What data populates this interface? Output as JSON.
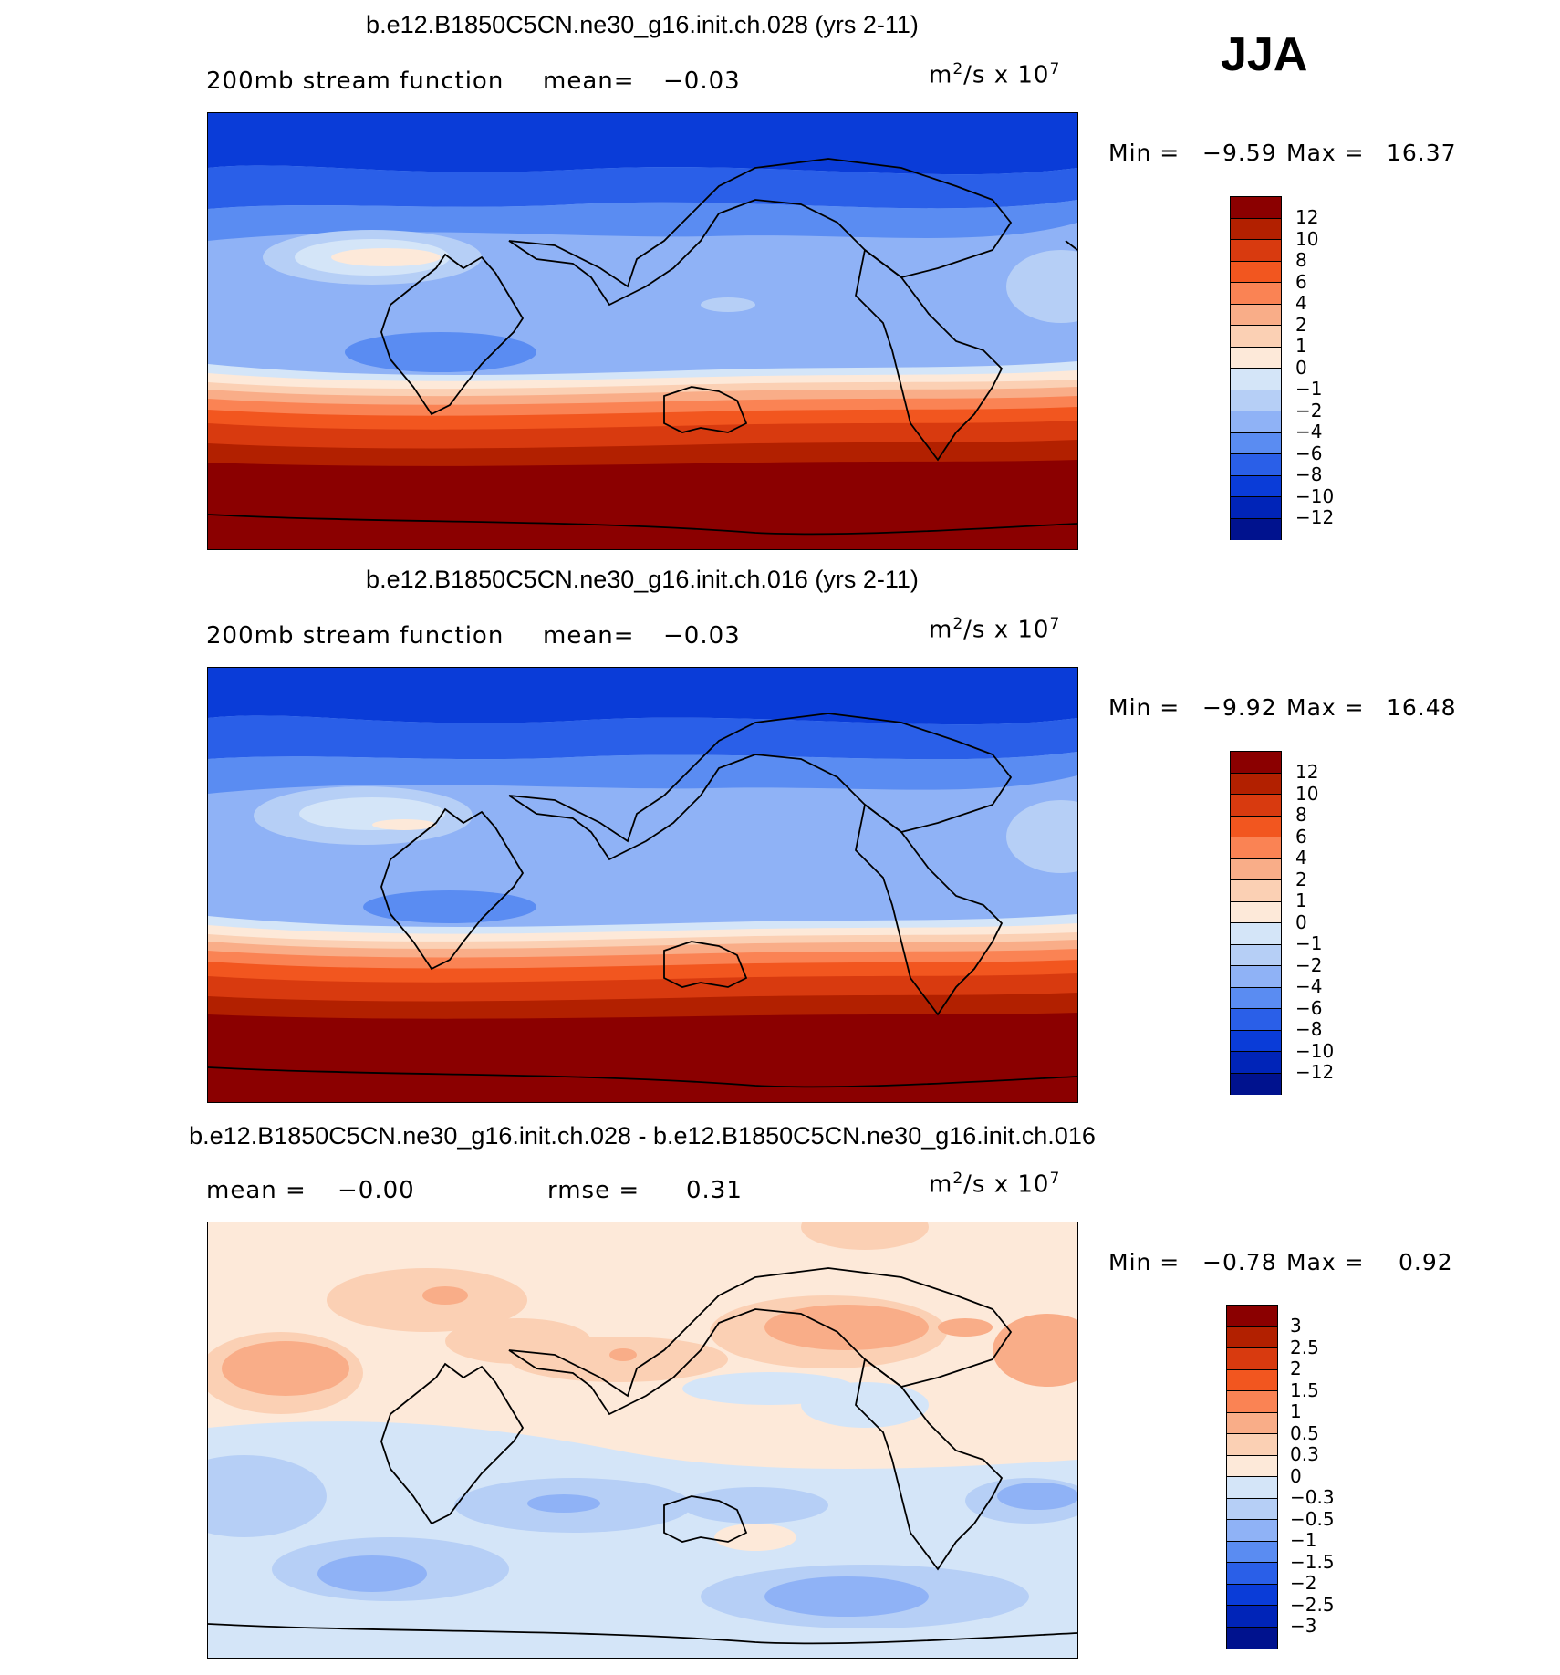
{
  "season": "JJA",
  "chart_data": [
    {
      "type": "heatmap",
      "title": "b.e12.B1850C5CN.ne30_g16.init.ch.028 (yrs 2-11)",
      "left_label": "200mb stream function",
      "mean_label": "mean=",
      "mean_value": "−0.03",
      "units_base": "m",
      "units_exp1": "2",
      "units_mid": "/s x 10",
      "units_exp2": "7",
      "min_label": "Min =",
      "min_value": "−9.59",
      "max_label": "Max =",
      "max_value": "16.37",
      "levels": [
        "12",
        "10",
        "8",
        "6",
        "4",
        "2",
        "1",
        "0",
        "−1",
        "−2",
        "−4",
        "−6",
        "−8",
        "−10",
        "−12"
      ],
      "colors": [
        "#8b0000",
        "#b22000",
        "#d83a0f",
        "#f2561f",
        "#fa8354",
        "#f9ad88",
        "#fbd0b4",
        "#fde9d9",
        "#d4e5f8",
        "#b6cff6",
        "#8fb2f6",
        "#5a8cf2",
        "#2a5fe8",
        "#0a3cd8",
        "#0024b8",
        "#00128e"
      ],
      "note": "200mb stream function field, Pacific-centered global map"
    },
    {
      "type": "heatmap",
      "title": "b.e12.B1850C5CN.ne30_g16.init.ch.016 (yrs 2-11)",
      "left_label": "200mb stream function",
      "mean_label": "mean=",
      "mean_value": "−0.03",
      "units_base": "m",
      "units_exp1": "2",
      "units_mid": "/s x 10",
      "units_exp2": "7",
      "min_label": "Min =",
      "min_value": "−9.92",
      "max_label": "Max =",
      "max_value": "16.48",
      "levels": [
        "12",
        "10",
        "8",
        "6",
        "4",
        "2",
        "1",
        "0",
        "−1",
        "−2",
        "−4",
        "−6",
        "−8",
        "−10",
        "−12"
      ],
      "colors": [
        "#8b0000",
        "#b22000",
        "#d83a0f",
        "#f2561f",
        "#fa8354",
        "#f9ad88",
        "#fbd0b4",
        "#fde9d9",
        "#d4e5f8",
        "#b6cff6",
        "#8fb2f6",
        "#5a8cf2",
        "#2a5fe8",
        "#0a3cd8",
        "#0024b8",
        "#00128e"
      ],
      "note": "200mb stream function field, Pacific-centered global map"
    },
    {
      "type": "heatmap",
      "title": "b.e12.B1850C5CN.ne30_g16.init.ch.028 - b.e12.B1850C5CN.ne30_g16.init.ch.016",
      "left_label": "mean =",
      "mean_label": "",
      "mean_value": "−0.00",
      "rmse_label": "rmse =",
      "rmse_value": "0.31",
      "units_base": "m",
      "units_exp1": "2",
      "units_mid": "/s x 10",
      "units_exp2": "7",
      "min_label": "Min =",
      "min_value": "−0.78",
      "max_label": "Max =",
      "max_value": "0.92",
      "levels": [
        "3",
        "2.5",
        "2",
        "1.5",
        "1",
        "0.5",
        "0.3",
        "0",
        "−0.3",
        "−0.5",
        "−1",
        "−1.5",
        "−2",
        "−2.5",
        "−3"
      ],
      "colors": [
        "#8b0000",
        "#b22000",
        "#d83a0f",
        "#f2561f",
        "#fa8354",
        "#f9ad88",
        "#fbd0b4",
        "#fde9d9",
        "#d4e5f8",
        "#b6cff6",
        "#8fb2f6",
        "#5a8cf2",
        "#2a5fe8",
        "#0a3cd8",
        "#0024b8",
        "#00128e"
      ],
      "note": "difference field"
    }
  ]
}
